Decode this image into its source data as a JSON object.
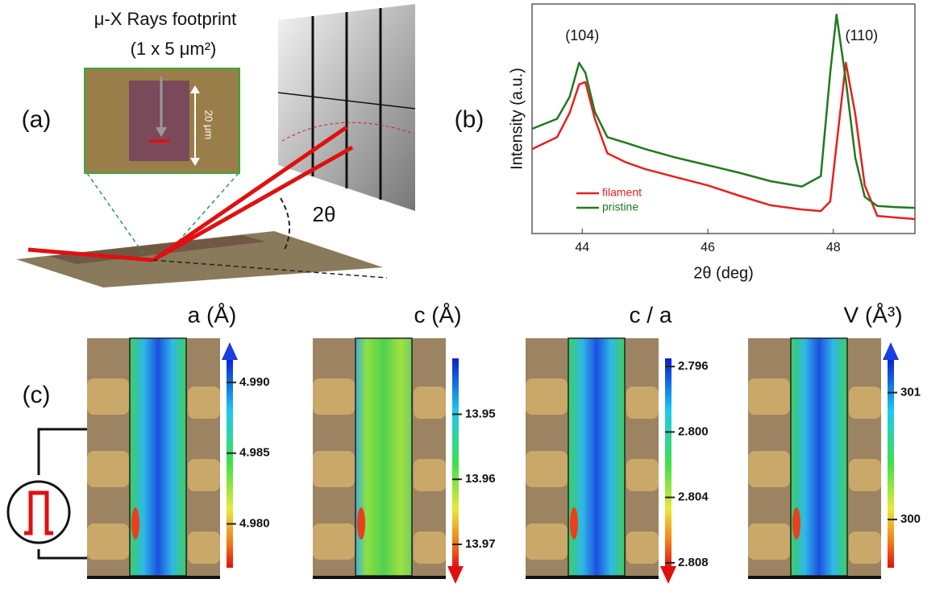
{
  "panel_labels": [
    "(a)",
    "(b)",
    "(c)"
  ],
  "schematic": {
    "footprint_title": "μ-X Rays footprint",
    "footprint_size": "(1 x 5 μm²)",
    "scale_label": "20 μm",
    "angle_label": "2θ"
  },
  "chart_data": {
    "type": "line",
    "x_label": "2θ (deg)",
    "y_label": "Intensity (a.u.)",
    "annotations": [
      {
        "text": "(104)",
        "x": 44
      },
      {
        "text": "(110)",
        "x": 48.45
      }
    ],
    "x": [
      43.2,
      43.6,
      43.8,
      43.95,
      44.05,
      44.2,
      44.4,
      44.7,
      45,
      45.5,
      46,
      46.5,
      47,
      47.5,
      47.8,
      47.95,
      48.05,
      48.2,
      48.35,
      48.5,
      48.7,
      49,
      49.3
    ],
    "series": [
      {
        "name": "filament",
        "color": "#e8201c",
        "values": [
          36.8,
          42,
          52.6,
          65,
          66,
          50,
          35,
          31,
          28.1,
          24.5,
          21,
          16.5,
          12.3,
          10.5,
          9.8,
          14,
          38.6,
          74.4,
          52,
          21,
          7.7,
          7,
          6.3
        ]
      },
      {
        "name": "pristine",
        "color": "#1f7a1f",
        "values": [
          45.6,
          50,
          59.6,
          74.4,
          70,
          53,
          42,
          39.5,
          36.8,
          33,
          29.8,
          26.5,
          22.8,
          20.5,
          25,
          70,
          95.4,
          66.7,
          33,
          16,
          12,
          11.5,
          11.2
        ]
      }
    ],
    "xlim": [
      43.2,
      49.3
    ],
    "xticks": [
      44,
      46,
      48
    ],
    "ylim": [
      0,
      100
    ],
    "legend": "lower left"
  },
  "maps": [
    {
      "title": "a (Å)",
      "lim": [
        4.9769,
        4.9917
      ],
      "arrow": "up",
      "ticks": [
        {
          "value": 4.99,
          "label": "4.990"
        },
        {
          "value": 4.985,
          "label": "4.985"
        },
        {
          "value": 4.98,
          "label": "4.980"
        }
      ]
    },
    {
      "title": "c (Å)",
      "lim": [
        13.9414,
        13.9736
      ],
      "arrow": "down",
      "ticks": [
        13.95,
        13.96,
        13.97
      ]
    },
    {
      "title": "c / a",
      "lim": [
        2.7955,
        2.8083
      ],
      "arrow": "down",
      "ticks": [
        2.796,
        {
          "value": 2.8,
          "label": "2.800"
        },
        2.804,
        2.808
      ]
    },
    {
      "title": "V (Å³)",
      "lim": [
        299.62,
        301.27
      ],
      "arrow": "up",
      "ticks": [
        301,
        300
      ]
    }
  ]
}
